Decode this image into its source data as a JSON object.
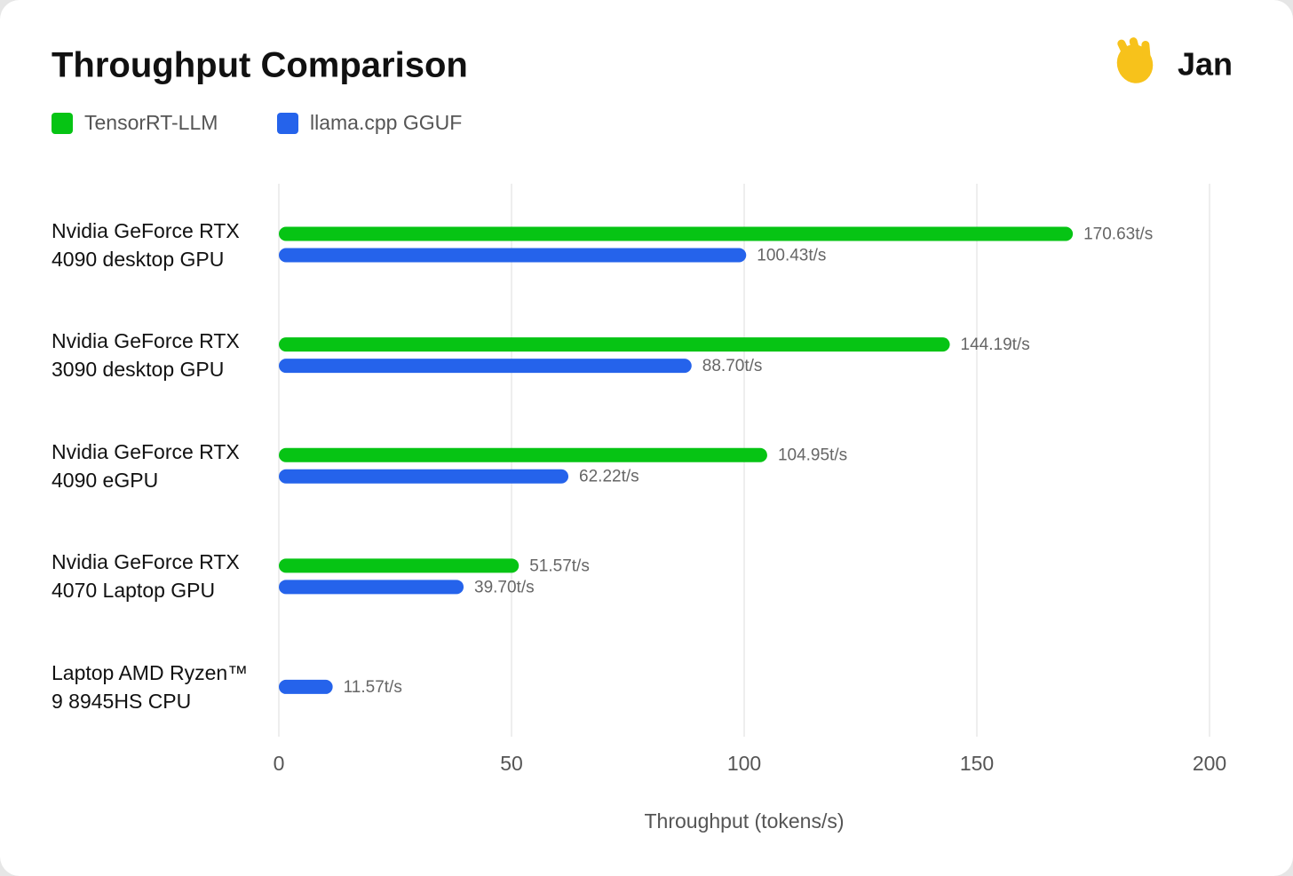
{
  "chart_data": {
    "type": "bar",
    "orientation": "horizontal",
    "title": "Throughput Comparison",
    "brand": "Jan",
    "categories": [
      "Nvidia GeForce RTX 4090 desktop GPU",
      "Nvidia GeForce RTX 3090 desktop GPU",
      "Nvidia GeForce RTX 4090 eGPU",
      "Nvidia GeForce RTX 4070 Laptop GPU",
      "Laptop AMD Ryzen™ 9 8945HS CPU"
    ],
    "series": [
      {
        "name": "TensorRT-LLM",
        "color": "#06c414",
        "values": [
          170.63,
          144.19,
          104.95,
          51.57,
          null
        ],
        "value_labels": [
          "170.63t/s",
          "144.19t/s",
          "104.95t/s",
          "51.57t/s",
          null
        ]
      },
      {
        "name": "llama.cpp GGUF",
        "color": "#2563eb",
        "values": [
          100.43,
          88.7,
          62.22,
          39.7,
          11.57
        ],
        "value_labels": [
          "100.43t/s",
          "88.70t/s",
          "62.22t/s",
          "39.70t/s",
          "11.57t/s"
        ]
      }
    ],
    "xlabel": "Throughput (tokens/s)",
    "xlim": [
      0,
      200
    ],
    "xticks": [
      0,
      50,
      100,
      150,
      200
    ],
    "grid": true
  }
}
